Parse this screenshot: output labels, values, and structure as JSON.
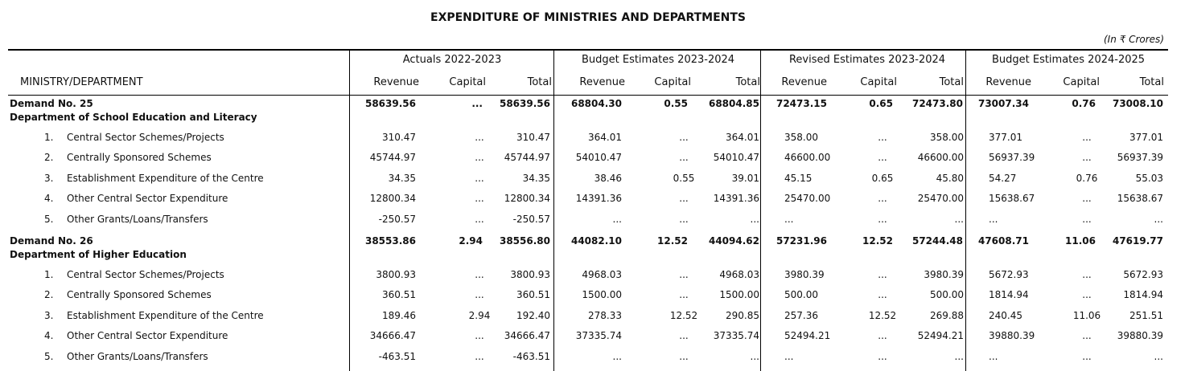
{
  "header": {
    "title": "EXPENDITURE OF MINISTRIES AND DEPARTMENTS",
    "unit": "(In ₹ Crores)"
  },
  "table": {
    "first_column": "MINISTRY/DEPARTMENT",
    "groups": [
      "Actuals 2022-2023",
      "Budget Estimates 2023-2024",
      "Revised Estimates 2023-2024",
      "Budget Estimates 2024-2025"
    ],
    "subcolumns": [
      "Revenue",
      "Capital",
      "Total"
    ],
    "sections": [
      {
        "demand": "Demand No. 25",
        "department": "Department of School Education and Literacy",
        "totals": [
          "58639.56",
          "...",
          "58639.56",
          "68804.30",
          "0.55",
          "68804.85",
          "72473.15",
          "0.65",
          "72473.80",
          "73007.34",
          "0.76",
          "73008.10"
        ],
        "items": [
          {
            "no": "1.",
            "name": "Central Sector Schemes/Projects",
            "values": [
              "310.47",
              "...",
              "310.47",
              "364.01",
              "...",
              "364.01",
              "358.00",
              "...",
              "358.00",
              "377.01",
              "...",
              "377.01"
            ]
          },
          {
            "no": "2.",
            "name": "Centrally Sponsored Schemes",
            "values": [
              "45744.97",
              "...",
              "45744.97",
              "54010.47",
              "...",
              "54010.47",
              "46600.00",
              "...",
              "46600.00",
              "56937.39",
              "...",
              "56937.39"
            ]
          },
          {
            "no": "3.",
            "name": "Establishment Expenditure of the Centre",
            "values": [
              "34.35",
              "...",
              "34.35",
              "38.46",
              "0.55",
              "39.01",
              "45.15",
              "0.65",
              "45.80",
              "54.27",
              "0.76",
              "55.03"
            ]
          },
          {
            "no": "4.",
            "name": "Other Central Sector Expenditure",
            "values": [
              "12800.34",
              "...",
              "12800.34",
              "14391.36",
              "...",
              "14391.36",
              "25470.00",
              "...",
              "25470.00",
              "15638.67",
              "...",
              "15638.67"
            ]
          },
          {
            "no": "5.",
            "name": "Other Grants/Loans/Transfers",
            "values": [
              "-250.57",
              "...",
              "-250.57",
              "...",
              "...",
              "...",
              "...",
              "...",
              "...",
              "...",
              "...",
              "..."
            ]
          }
        ]
      },
      {
        "demand": "Demand No. 26",
        "department": "Department of Higher Education",
        "totals": [
          "38553.86",
          "2.94",
          "38556.80",
          "44082.10",
          "12.52",
          "44094.62",
          "57231.96",
          "12.52",
          "57244.48",
          "47608.71",
          "11.06",
          "47619.77"
        ],
        "items": [
          {
            "no": "1.",
            "name": "Central Sector Schemes/Projects",
            "values": [
              "3800.93",
              "...",
              "3800.93",
              "4968.03",
              "...",
              "4968.03",
              "3980.39",
              "...",
              "3980.39",
              "5672.93",
              "...",
              "5672.93"
            ]
          },
          {
            "no": "2.",
            "name": "Centrally Sponsored Schemes",
            "values": [
              "360.51",
              "...",
              "360.51",
              "1500.00",
              "...",
              "1500.00",
              "500.00",
              "...",
              "500.00",
              "1814.94",
              "...",
              "1814.94"
            ]
          },
          {
            "no": "3.",
            "name": "Establishment Expenditure of the Centre",
            "values": [
              "189.46",
              "2.94",
              "192.40",
              "278.33",
              "12.52",
              "290.85",
              "257.36",
              "12.52",
              "269.88",
              "240.45",
              "11.06",
              "251.51"
            ]
          },
          {
            "no": "4.",
            "name": "Other Central Sector Expenditure",
            "values": [
              "34666.47",
              "...",
              "34666.47",
              "37335.74",
              "...",
              "37335.74",
              "52494.21",
              "...",
              "52494.21",
              "39880.39",
              "...",
              "39880.39"
            ]
          },
          {
            "no": "5.",
            "name": "Other Grants/Loans/Transfers",
            "values": [
              "-463.51",
              "...",
              "-463.51",
              "...",
              "...",
              "...",
              "...",
              "...",
              "...",
              "...",
              "...",
              "..."
            ]
          }
        ]
      }
    ]
  }
}
